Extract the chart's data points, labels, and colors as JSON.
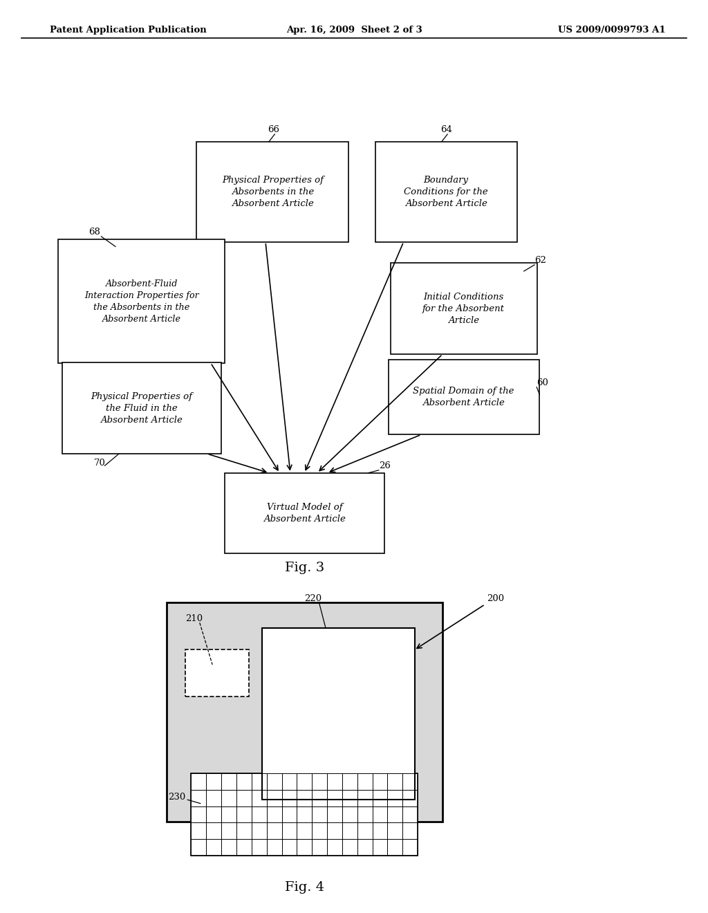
{
  "header_left": "Patent Application Publication",
  "header_center": "Apr. 16, 2009  Sheet 2 of 3",
  "header_right": "US 2009/0099793 A1",
  "fig3_label": "Fig. 3",
  "fig4_label": "Fig. 4",
  "bg_color": "#ffffff"
}
